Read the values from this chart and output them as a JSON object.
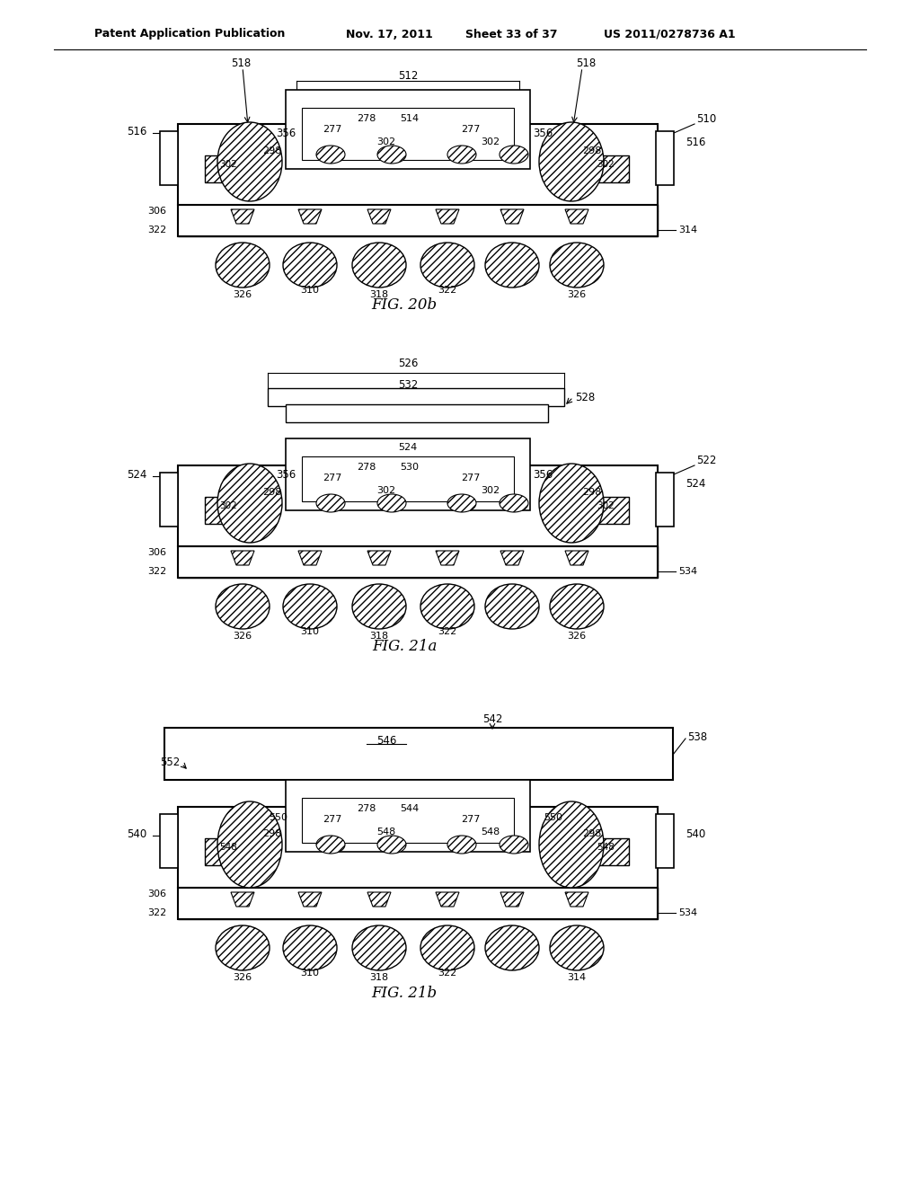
{
  "background_color": "#ffffff",
  "header_text": "Patent Application Publication",
  "header_date": "Nov. 17, 2011",
  "header_sheet": "Sheet 33 of 37",
  "header_patent": "US 2011/0278736 A1",
  "fig1_label": "FIG. 20b",
  "fig2_label": "FIG. 21a",
  "fig3_label": "FIG. 21b",
  "line_color": "#000000",
  "hatch_color": "#000000",
  "fill_color": "#ffffff"
}
